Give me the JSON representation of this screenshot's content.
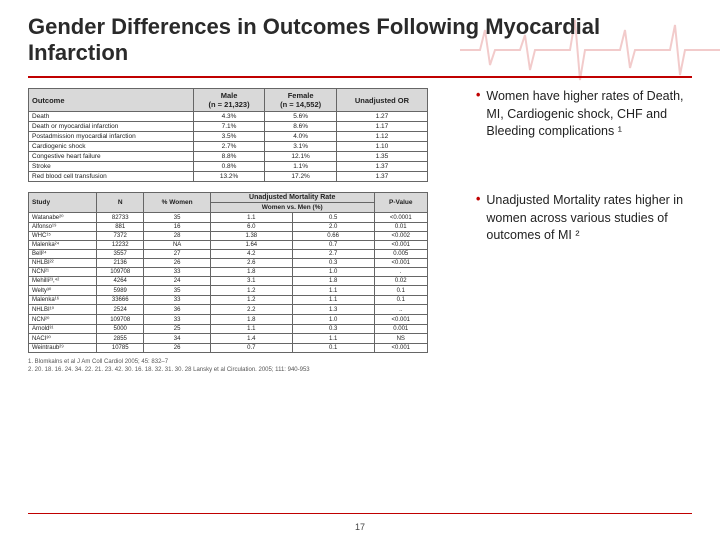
{
  "title": "Gender Differences in Outcomes Following Myocardial Infarction",
  "page_number": "17",
  "bullets": {
    "b1": "Women have higher rates of Death, MI, Cardiogenic shock, CHF and Bleeding complications ¹",
    "b2": "Unadjusted Mortality rates higher in women across various studies of outcomes of MI ²"
  },
  "outcome_table": {
    "headers": {
      "c0": "Outcome",
      "c1": "Male\n(n = 21,323)",
      "c2": "Female\n(n = 14,552)",
      "c3": "Unadjusted OR"
    },
    "rows": [
      {
        "c0": "Death",
        "c1": "4.3%",
        "c2": "5.6%",
        "c3": "1.27"
      },
      {
        "c0": "Death or myocardial infarction",
        "c1": "7.1%",
        "c2": "8.6%",
        "c3": "1.17"
      },
      {
        "c0": "Postadmission myocardial infarction",
        "c1": "3.5%",
        "c2": "4.0%",
        "c3": "1.12"
      },
      {
        "c0": "Cardiogenic shock",
        "c1": "2.7%",
        "c2": "3.1%",
        "c3": "1.10"
      },
      {
        "c0": "Congestive heart failure",
        "c1": "8.8%",
        "c2": "12.1%",
        "c3": "1.35"
      },
      {
        "c0": "Stroke",
        "c1": "0.8%",
        "c2": "1.1%",
        "c3": "1.37"
      },
      {
        "c0": "Red blood cell transfusion",
        "c1": "13.2%",
        "c2": "17.2%",
        "c3": "1.37"
      }
    ]
  },
  "study_table": {
    "span_header": "Unadjusted Mortality Rate",
    "headers": {
      "c0": "Study",
      "c1": "N",
      "c2": "% Women",
      "c3": "Women vs. Men (%)",
      "c4": "P-Value"
    },
    "cols_sub": {
      "c3a": "Women",
      "c3b": "Men"
    },
    "rows": [
      {
        "c0": "Watanabe²⁰",
        "c1": "82733",
        "c2": "35",
        "c3a": "1.1",
        "c3b": "0.5",
        "c4": "<0.0001"
      },
      {
        "c0": "Alfonso¹⁹",
        "c1": "881",
        "c2": "16",
        "c3a": "6.0",
        "c3b": "2.0",
        "c4": "0.01"
      },
      {
        "c0": "WHC¹⁵",
        "c1": "7372",
        "c2": "28",
        "c3a": "1.38",
        "c3b": "0.66",
        "c4": "<0.002"
      },
      {
        "c0": "Malenka²⁴",
        "c1": "12232",
        "c2": "NA",
        "c3a": "1.64",
        "c3b": "0.7",
        "c4": "<0.001"
      },
      {
        "c0": "Bell²⁴",
        "c1": "3557",
        "c2": "27",
        "c3a": "4.2",
        "c3b": "2.7",
        "c4": "0.005"
      },
      {
        "c0": "NHLBI²²",
        "c1": "2136",
        "c2": "26",
        "c3a": "2.6",
        "c3b": "0.3",
        "c4": "<0.001"
      },
      {
        "c0": "NCN²¹",
        "c1": "109708",
        "c2": "33",
        "c3a": "1.8",
        "c3b": "1.0",
        "c4": "."
      },
      {
        "c0": "Mehilli²³,⁴²",
        "c1": "4264",
        "c2": "24",
        "c3a": "3.1",
        "c3b": "1.8",
        "c4": "0.02"
      },
      {
        "c0": "Welty³⁰",
        "c1": "5989",
        "c2": "35",
        "c3a": "1.2",
        "c3b": "1.1",
        "c4": "0.1"
      },
      {
        "c0": "Malenka¹⁶",
        "c1": "33666",
        "c2": "33",
        "c3a": "1.2",
        "c3b": "1.1",
        "c4": "0.1"
      },
      {
        "c0": "NHLBI¹⁰",
        "c1": "2524",
        "c2": "36",
        "c3a": "2.2",
        "c3b": "1.3",
        "c4": ".."
      },
      {
        "c0": "NCN²⁰",
        "c1": "109708",
        "c2": "33",
        "c3a": "1.8",
        "c3b": "1.0",
        "c4": "<0.001"
      },
      {
        "c0": "Arnold³¹",
        "c1": "5000",
        "c2": "25",
        "c3a": "1.1",
        "c3b": "0.3",
        "c4": "0.001"
      },
      {
        "c0": "NACI³⁰",
        "c1": "2855",
        "c2": "34",
        "c3a": "1.4",
        "c3b": "1.1",
        "c4": "NS"
      },
      {
        "c0": "Weintraub²⁹",
        "c1": "10785",
        "c2": "26",
        "c3a": "0.7",
        "c3b": "0.1",
        "c4": "<0.001"
      }
    ]
  },
  "refs": {
    "r1": "1.   Blomkalns et al J Am Coll Cardiol 2005; 45: 832–7",
    "r2": "2.   20. 18. 16. 24. 34. 22. 21. 23. 42. 30. 16. 18. 32. 31. 30. 28 Lansky et al Circulation. 2005; 111: 940-953"
  }
}
